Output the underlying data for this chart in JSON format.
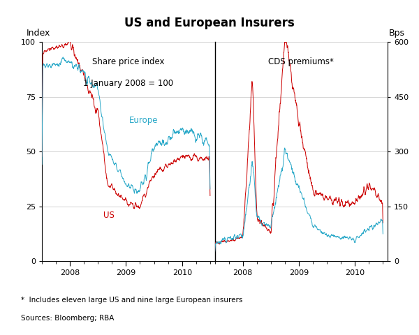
{
  "title": "US and European Insurers",
  "left_label": "Index",
  "right_label": "Bps",
  "left_subtitle1": "Share price index",
  "left_subtitle2": "1 January 2008 = 100",
  "right_subtitle": "CDS premiums*",
  "footnote1": "*  Includes eleven large US and nine large European insurers",
  "footnote2": "Sources: Bloomberg; RBA",
  "europe_label": "Europe",
  "us_label": "US",
  "us_color": "#cc0000",
  "europe_color": "#29a8c8",
  "ylim_left": [
    0,
    100
  ],
  "ylim_right": [
    0,
    600
  ],
  "yticks_left": [
    0,
    25,
    50,
    75,
    100
  ],
  "yticks_right": [
    0,
    150,
    300,
    450,
    600
  ],
  "grid_color": "#cccccc"
}
